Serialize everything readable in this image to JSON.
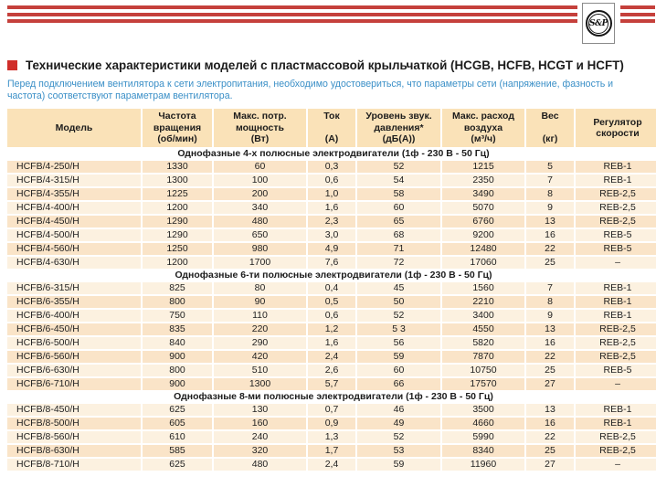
{
  "colors": {
    "accent_red": "#C5403B",
    "square_red": "#D02E2A",
    "intro_blue": "#3A8FC7",
    "header_bg": "#FAE2B8",
    "row_dark": "#FAE4C8",
    "row_light": "#FCF1E0"
  },
  "logo": {
    "text": "S&P"
  },
  "title": "Технические характеристики моделей с пластмассовой крыльчаткой (HCGB, HCFB, HCGT и HCFT)",
  "intro": "Перед подключением вентилятора к сети электропитания, необходимо удостовериться, что параметры сети (напряжение, фазность и частота) соответствуют параметрам вентилятора.",
  "table": {
    "columns": [
      {
        "id": "model",
        "lines": [
          "Модель"
        ]
      },
      {
        "id": "speed",
        "lines": [
          "Частота",
          "вращения",
          "(об/мин)"
        ]
      },
      {
        "id": "power",
        "lines": [
          "Макс. потр.",
          "мощность",
          "(Вт)"
        ]
      },
      {
        "id": "current",
        "lines": [
          "Ток",
          "",
          "(А)"
        ]
      },
      {
        "id": "noise",
        "lines": [
          "Уровень звук.",
          "давления*",
          "(дБ(А))"
        ]
      },
      {
        "id": "airflow",
        "lines": [
          "Макс. расход",
          "воздуха",
          "(м³/ч)"
        ]
      },
      {
        "id": "weight",
        "lines": [
          "Вес",
          "",
          "(кг)"
        ]
      },
      {
        "id": "regulator",
        "lines": [
          "Регулятор",
          "скорости"
        ]
      }
    ],
    "sections": [
      {
        "header": "Однофазные 4-х полюсные электродвигатели (1ф - 230 В - 50 Гц)",
        "first_row_dark": true,
        "rows": [
          [
            "HCFB/4-250/H",
            "1330",
            "60",
            "0,3",
            "52",
            "1215",
            "5",
            "REB-1"
          ],
          [
            "HCFB/4-315/H",
            "1300",
            "100",
            "0,6",
            "54",
            "2350",
            "7",
            "REB-1"
          ],
          [
            "HCFB/4-355/H",
            "1225",
            "200",
            "1,0",
            "58",
            "3490",
            "8",
            "REB-2,5"
          ],
          [
            "HCFB/4-400/H",
            "1200",
            "340",
            "1,6",
            "60",
            "5070",
            "9",
            "REB-2,5"
          ],
          [
            "HCFB/4-450/H",
            "1290",
            "480",
            "2,3",
            "65",
            "6760",
            "13",
            "REB-2,5"
          ],
          [
            "HCFB/4-500/H",
            "1290",
            "650",
            "3,0",
            "68",
            "9200",
            "16",
            "REB-5"
          ],
          [
            "HCFB/4-560/H",
            "1250",
            "980",
            "4,9",
            "71",
            "12480",
            "22",
            "REB-5"
          ],
          [
            "HCFB/4-630/H",
            "1200",
            "1700",
            "7,6",
            "72",
            "17060",
            "25",
            "–"
          ]
        ]
      },
      {
        "header": "Однофазные 6-ти полюсные электродвигатели (1ф - 230 В - 50 Гц)",
        "first_row_dark": false,
        "rows": [
          [
            "HCFB/6-315/H",
            "825",
            "80",
            "0,4",
            "45",
            "1560",
            "7",
            "REB-1"
          ],
          [
            "HCFB/6-355/H",
            "800",
            "90",
            "0,5",
            "50",
            "2210",
            "8",
            "REB-1"
          ],
          [
            "HCFB/6-400/H",
            "750",
            "110",
            "0,6",
            "52",
            "3400",
            "9",
            "REB-1"
          ],
          [
            "HCFB/6-450/H",
            "835",
            "220",
            "1,2",
            "5 3",
            "4550",
            "13",
            "REB-2,5"
          ],
          [
            "HCFB/6-500/H",
            "840",
            "290",
            "1,6",
            "56",
            "5820",
            "16",
            "REB-2,5"
          ],
          [
            "HCFB/6-560/H",
            "900",
            "420",
            "2,4",
            "59",
            "7870",
            "22",
            "REB-2,5"
          ],
          [
            "HCFB/6-630/H",
            "800",
            "510",
            "2,6",
            "60",
            "10750",
            "25",
            "REB-5"
          ],
          [
            "HCFB/6-710/H",
            "900",
            "1300",
            "5,7",
            "66",
            "17570",
            "27",
            "–"
          ]
        ]
      },
      {
        "header": "Однофазные 8-ми полюсные электродвигатели (1ф - 230 В - 50 Гц)",
        "first_row_dark": false,
        "rows": [
          [
            "HCFB/8-450/H",
            "625",
            "130",
            "0,7",
            "46",
            "3500",
            "13",
            "REB-1"
          ],
          [
            "HCFB/8-500/H",
            "605",
            "160",
            "0,9",
            "49",
            "4660",
            "16",
            "REB-1"
          ],
          [
            "HCFB/8-560/H",
            "610",
            "240",
            "1,3",
            "52",
            "5990",
            "22",
            "REB-2,5"
          ],
          [
            "HCFB/8-630/H",
            "585",
            "320",
            "1,7",
            "53",
            "8340",
            "25",
            "REB-2,5"
          ],
          [
            "HCFB/8-710/H",
            "625",
            "480",
            "2,4",
            "59",
            "11960",
            "27",
            "–"
          ]
        ]
      }
    ]
  }
}
